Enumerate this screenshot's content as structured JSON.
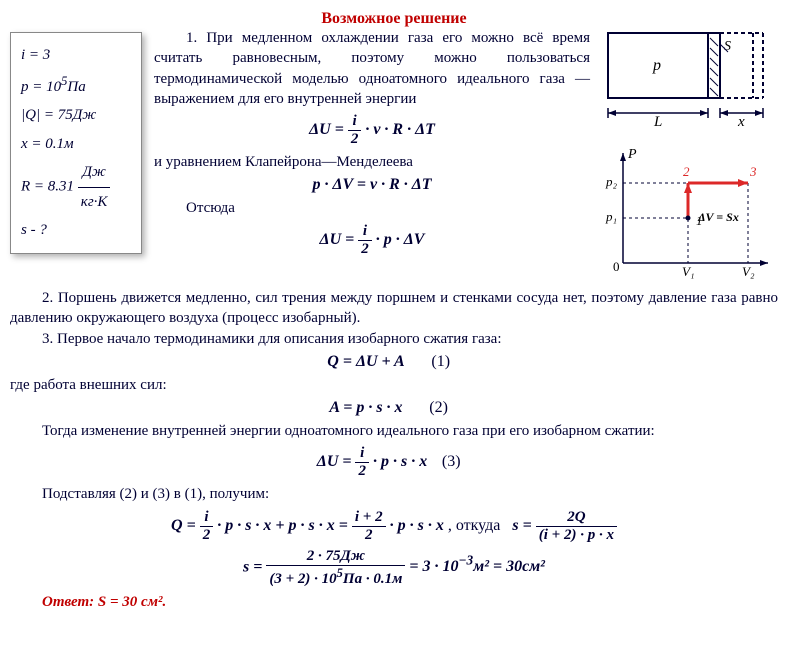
{
  "title": "Возможное решение",
  "given": {
    "i": "i = 3",
    "p": "p = 10<sup>5</sup>Па",
    "Q": "|Q| = 75Дж",
    "x": "x = 0.1м",
    "R_num": "R = 8.31",
    "R_unit_num": "Дж",
    "R_unit_den": "кг·K",
    "unknown": "s - ?"
  },
  "text": {
    "p1": "1. При медленном охлаждении газа его можно всё время считать равновесным, поэтому можно пользоваться термодинамической моделью одноатомного идеального газа — выражением для его внутренней энергии",
    "clapeyron": "и уравнением Клапейрона—Менделеева",
    "otsyuda": "Отсюда",
    "p2": "2. Поршень движется медленно, сил трения между поршнем и стенками сосуда нет, поэтому давление газа равно давлению окружающего воздуха (процесс изобарный).",
    "p3": "3. Первое начало термодинамики для описания изобарного сжатия газа:",
    "p4": "где работа внешних сил:",
    "p5": "Тогда изменение внутренней энергии одноатомного идеального газа при его изобарном сжатии:",
    "p6": "Подставляя (2) и (3) в (1), получим:",
    "otkuda": ", откуда",
    "answer_label": "Ответ:",
    "answer_val": "S = 30 см²."
  },
  "formulas": {
    "dU1_lhs": "ΔU = ",
    "i2_num": "i",
    "i2_den": "2",
    "dU1_rhs": " · ν · R · ΔT",
    "clap": "p · ΔV = ν · R · ΔT",
    "dU2_rhs": " · p · ΔV",
    "Q": "Q = ΔU + A",
    "A": "A = p · s · x",
    "dU3_rhs": " · p · s · x",
    "final_l1": "Q = ",
    "final_l2": " · p · s · x + p · s · x = ",
    "final_l3_num": "i + 2",
    "final_l3_den": "2",
    "final_l4": " · p · s · x",
    "s_eq": "s = ",
    "s_num": "2Q",
    "s_den": "(i + 2) · p · x",
    "calc_num": "2 · 75Дж",
    "calc_den": "(3 + 2) · 10<sup>5</sup>Па · 0.1м",
    "calc_res": " = 3 · 10<sup>−3</sup>м² = 30см²"
  },
  "eqnums": {
    "n1": "(1)",
    "n2": "(2)",
    "n3": "(3)"
  },
  "diagram1": {
    "labels": {
      "p": "p",
      "S": "S",
      "L": "L",
      "x": "x"
    },
    "colors": {
      "stroke": "#000033",
      "dash": "#000033"
    }
  },
  "diagram2": {
    "labels": {
      "P": "P",
      "p1": "p₁",
      "p2": "p₂",
      "V1": "V₁",
      "V2": "V₂",
      "zero": "0",
      "n1": "1",
      "n2": "2",
      "n3": "3",
      "dV": "ΔV = Sx"
    },
    "colors": {
      "axis": "#000033",
      "red": "#dc2828"
    }
  }
}
